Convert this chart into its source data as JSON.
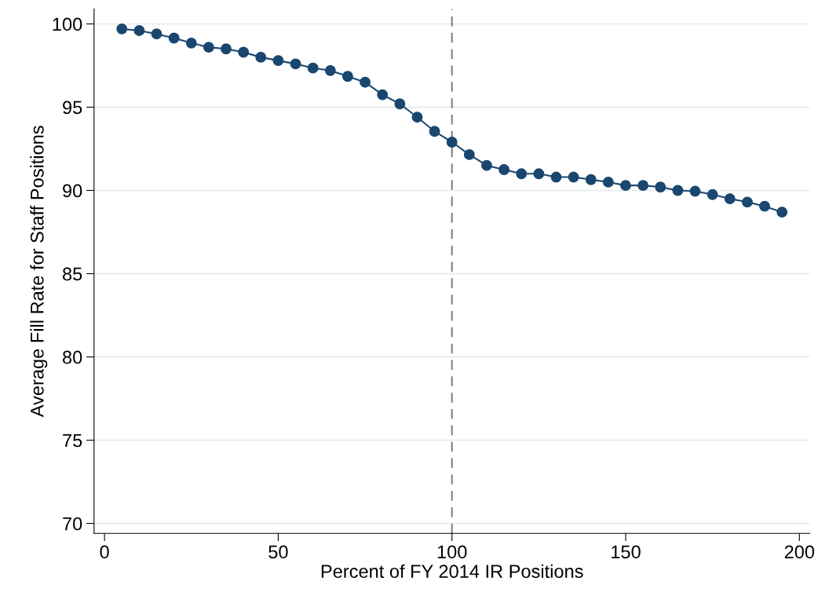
{
  "chart_data": {
    "type": "line",
    "xlabel": "Percent of FY 2014 IR Positions",
    "ylabel": "Average Fill Rate for Staff Positions",
    "x": [
      5,
      10,
      15,
      20,
      25,
      30,
      35,
      40,
      45,
      50,
      55,
      60,
      65,
      70,
      75,
      80,
      85,
      90,
      95,
      100,
      105,
      110,
      115,
      120,
      125,
      130,
      135,
      140,
      145,
      150,
      155,
      160,
      165,
      170,
      175,
      180,
      185,
      190,
      195
    ],
    "series": [
      {
        "color": "#1a476f",
        "values": [
          99.7,
          99.6,
          99.4,
          99.15,
          98.85,
          98.6,
          98.5,
          98.3,
          98.0,
          97.8,
          97.6,
          97.35,
          97.2,
          96.85,
          96.5,
          95.75,
          95.2,
          94.4,
          93.55,
          92.9,
          92.15,
          91.5,
          91.25,
          91.0,
          91.0,
          90.8,
          90.8,
          90.65,
          90.5,
          90.3,
          90.3,
          90.2,
          90.0,
          89.95,
          89.75,
          89.5,
          89.3,
          89.05,
          88.7
        ]
      }
    ],
    "xlim": [
      -3,
      203
    ],
    "xticks": [
      0,
      50,
      100,
      150,
      200
    ],
    "ylim": [
      69.4,
      100.9
    ],
    "yticks": [
      70,
      75,
      80,
      85,
      90,
      95,
      100
    ],
    "grid": "y",
    "marker": "circle",
    "line_style": "solid",
    "ref_lines": [
      {
        "axis": "x",
        "value": 100,
        "color": "#808080",
        "line_style": "dashed"
      }
    ]
  }
}
